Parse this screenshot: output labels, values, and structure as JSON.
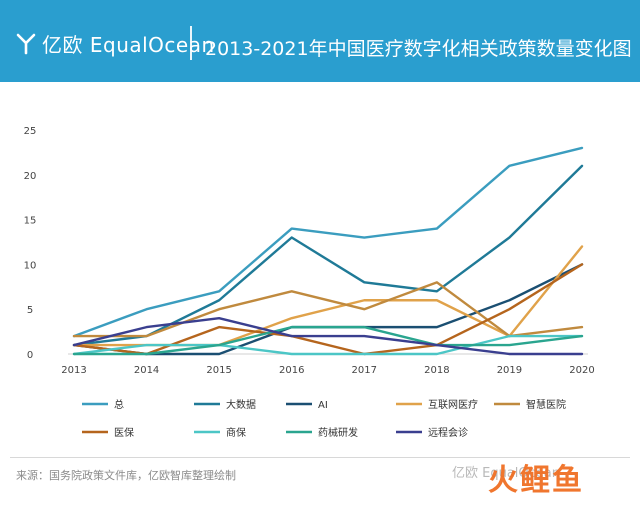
{
  "header": {
    "logo_text": "亿欧 EqualOcean",
    "title": "2013-2021年中国医疗数字化相关政策数量变化图",
    "background": "#2a9ecf"
  },
  "footer": {
    "source": "来源：国务院政策文件库，亿欧智库整理绘制",
    "watermark": "亿欧 EqualOcean",
    "watermark_big": "火鲤鱼"
  },
  "chart_data": {
    "type": "line",
    "x": [
      "2013",
      "2014",
      "2015",
      "2016",
      "2017",
      "2018",
      "2019",
      "2020"
    ],
    "ylim": [
      0,
      25
    ],
    "yticks": [
      0,
      5,
      10,
      15,
      20,
      25
    ],
    "grid": false,
    "legend_position": "bottom",
    "series": [
      {
        "name": "总",
        "color": "#3b9dbf",
        "values": [
          2,
          5,
          7,
          14,
          13,
          14,
          21,
          23
        ]
      },
      {
        "name": "大数据",
        "color": "#1f7a97",
        "values": [
          1,
          2,
          6,
          13,
          8,
          7,
          13,
          21
        ]
      },
      {
        "name": "AI",
        "color": "#1b4f72",
        "values": [
          1,
          0,
          0,
          3,
          3,
          3,
          6,
          10
        ]
      },
      {
        "name": "互联网医疗",
        "color": "#e0a24a",
        "values": [
          1,
          1,
          1,
          4,
          6,
          6,
          2,
          12
        ]
      },
      {
        "name": "智慧医院",
        "color": "#c08a3e",
        "values": [
          2,
          2,
          5,
          7,
          5,
          8,
          2,
          3
        ]
      },
      {
        "name": "医保",
        "color": "#b5651d",
        "values": [
          1,
          0,
          3,
          2,
          0,
          1,
          5,
          10
        ]
      },
      {
        "name": "商保",
        "color": "#4cc6c6",
        "values": [
          0,
          1,
          1,
          0,
          0,
          0,
          2,
          2
        ]
      },
      {
        "name": "药械研发",
        "color": "#2aa58f",
        "values": [
          0,
          0,
          1,
          3,
          3,
          1,
          1,
          2
        ]
      },
      {
        "name": "远程会诊",
        "color": "#3a3f8f",
        "values": [
          1,
          3,
          4,
          2,
          2,
          1,
          0,
          0
        ]
      }
    ]
  }
}
